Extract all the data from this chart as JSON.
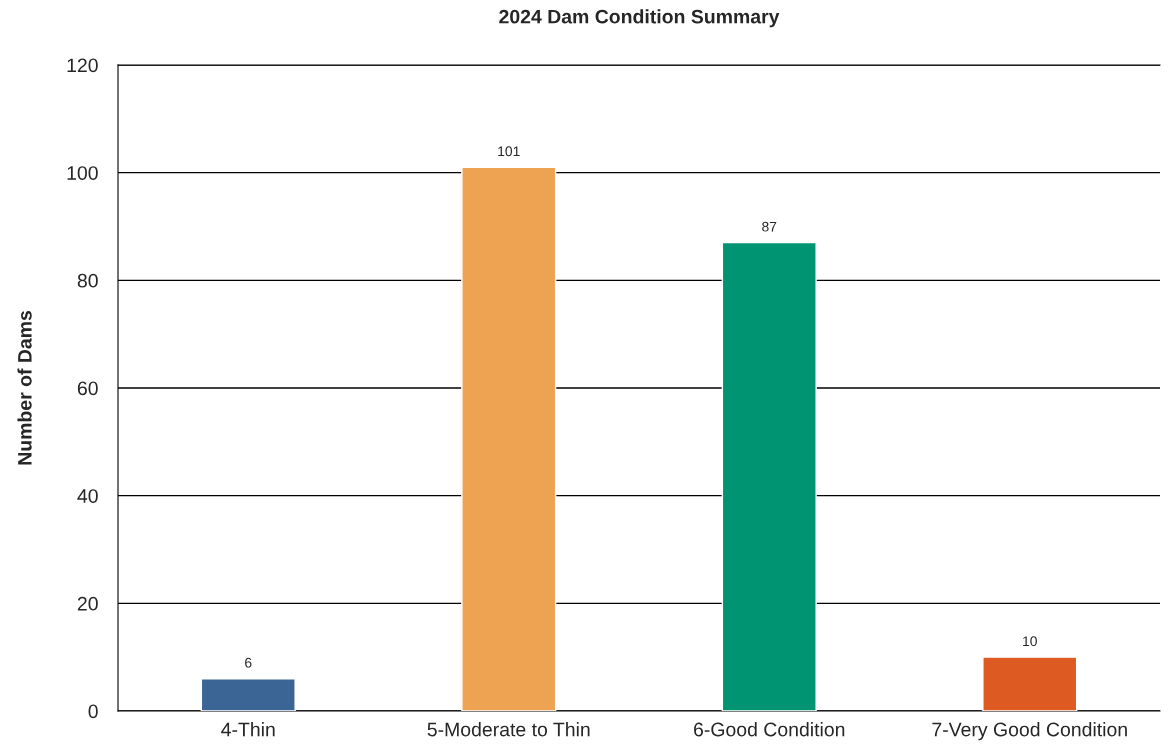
{
  "chart_data": {
    "type": "bar",
    "title": "2024 Dam Condition Summary",
    "ylabel": "Number of Dams",
    "categories": [
      "4-Thin",
      "5-Moderate to Thin",
      "6-Good Condition",
      "7-Very Good Condition"
    ],
    "values": [
      6,
      101,
      87,
      10
    ],
    "colors": [
      "#3a6595",
      "#eea353",
      "#009472",
      "#dd5a22"
    ],
    "ylim": [
      0,
      120
    ],
    "yticks": [
      0,
      20,
      40,
      60,
      80,
      100,
      120
    ],
    "grid": "y",
    "data_labels": true,
    "legend": false
  }
}
